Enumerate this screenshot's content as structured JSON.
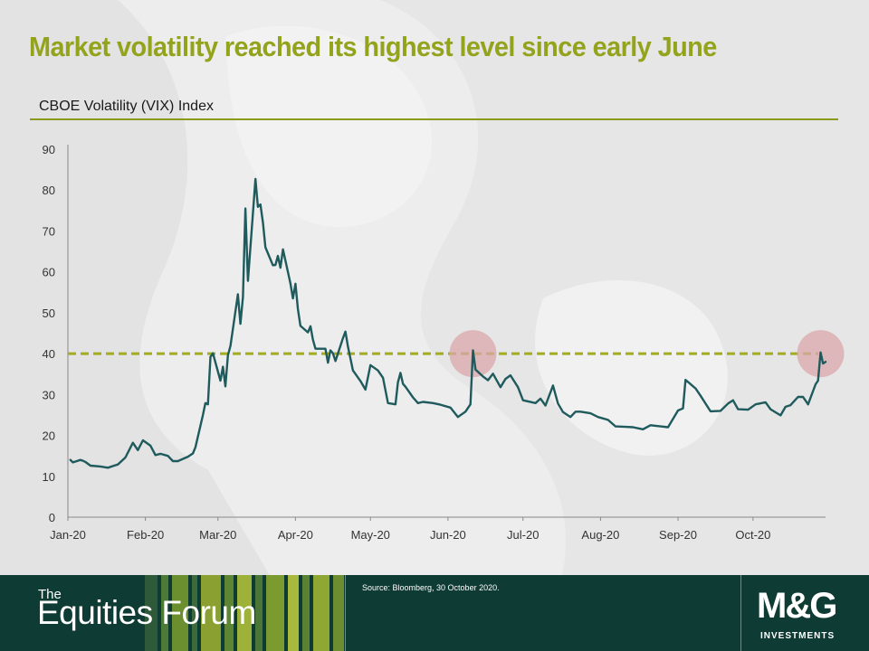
{
  "title": "Market volatility reached its highest level since early June",
  "subtitle": "CBOE Volatility (VIX) Index",
  "footer": {
    "the": "The",
    "brand": "Equities Forum",
    "source": "Source: Bloomberg, 30 October 2020.",
    "logo": "M&G",
    "logo_sub": "INVESTMENTS"
  },
  "colors": {
    "title": "#94a31c",
    "line": "#1f5a5c",
    "reference_line": "#a3ac1c",
    "highlight": "#d9a7a9",
    "footer_bg": "#0e3b34"
  },
  "chart_data": {
    "type": "line",
    "title": "CBOE Volatility (VIX) Index",
    "xlabel": "",
    "ylabel": "",
    "ylim": [
      0,
      90
    ],
    "yticks": [
      "0",
      "10",
      "20",
      "30",
      "40",
      "50",
      "60",
      "70",
      "80",
      "90"
    ],
    "xticks": [
      "Jan-20",
      "Feb-20",
      "Mar-20",
      "Apr-20",
      "May-20",
      "Jun-20",
      "Jul-20",
      "Aug-20",
      "Sep-20",
      "Oct-20"
    ],
    "xlim": [
      "2020-01-01",
      "2020-10-30"
    ],
    "grid": false,
    "reference_line": {
      "y": 40,
      "style": "dashed"
    },
    "highlights": [
      {
        "x": "2020-06-11",
        "y": 40
      },
      {
        "x": "2020-10-28",
        "y": 40
      }
    ],
    "series": [
      {
        "x": [
          "2020-01-02",
          "2020-01-03",
          "2020-01-06",
          "2020-01-07",
          "2020-01-08",
          "2020-01-10",
          "2020-01-14",
          "2020-01-17",
          "2020-01-21",
          "2020-01-24",
          "2020-01-27",
          "2020-01-29",
          "2020-01-31",
          "2020-02-03",
          "2020-02-05",
          "2020-02-07",
          "2020-02-10",
          "2020-02-12",
          "2020-02-14",
          "2020-02-18",
          "2020-02-20",
          "2020-02-21",
          "2020-02-24",
          "2020-02-25",
          "2020-02-26",
          "2020-02-27",
          "2020-02-28",
          "2020-03-02",
          "2020-03-03",
          "2020-03-04",
          "2020-03-05",
          "2020-03-06",
          "2020-03-09",
          "2020-03-10",
          "2020-03-11",
          "2020-03-12",
          "2020-03-13",
          "2020-03-16",
          "2020-03-17",
          "2020-03-18",
          "2020-03-19",
          "2020-03-20",
          "2020-03-23",
          "2020-03-24",
          "2020-03-25",
          "2020-03-26",
          "2020-03-27",
          "2020-03-30",
          "2020-03-31",
          "2020-04-01",
          "2020-04-02",
          "2020-04-03",
          "2020-04-06",
          "2020-04-07",
          "2020-04-08",
          "2020-04-09",
          "2020-04-13",
          "2020-04-14",
          "2020-04-15",
          "2020-04-16",
          "2020-04-17",
          "2020-04-20",
          "2020-04-21",
          "2020-04-22",
          "2020-04-24",
          "2020-04-27",
          "2020-04-29",
          "2020-04-30",
          "2020-05-01",
          "2020-05-04",
          "2020-05-06",
          "2020-05-08",
          "2020-05-11",
          "2020-05-12",
          "2020-05-13",
          "2020-05-14",
          "2020-05-15",
          "2020-05-18",
          "2020-05-20",
          "2020-05-22",
          "2020-05-26",
          "2020-05-29",
          "2020-06-02",
          "2020-06-05",
          "2020-06-08",
          "2020-06-10",
          "2020-06-11",
          "2020-06-12",
          "2020-06-15",
          "2020-06-17",
          "2020-06-19",
          "2020-06-22",
          "2020-06-24",
          "2020-06-26",
          "2020-06-29",
          "2020-07-01",
          "2020-07-06",
          "2020-07-08",
          "2020-07-10",
          "2020-07-13",
          "2020-07-15",
          "2020-07-17",
          "2020-07-20",
          "2020-07-22",
          "2020-07-24",
          "2020-07-28",
          "2020-07-31",
          "2020-08-04",
          "2020-08-07",
          "2020-08-11",
          "2020-08-14",
          "2020-08-18",
          "2020-08-21",
          "2020-08-25",
          "2020-08-28",
          "2020-09-01",
          "2020-09-03",
          "2020-09-04",
          "2020-09-08",
          "2020-09-10",
          "2020-09-14",
          "2020-09-18",
          "2020-09-21",
          "2020-09-23",
          "2020-09-25",
          "2020-09-29",
          "2020-10-02",
          "2020-10-06",
          "2020-10-08",
          "2020-10-12",
          "2020-10-14",
          "2020-10-16",
          "2020-10-19",
          "2020-10-21",
          "2020-10-23",
          "2020-10-26",
          "2020-10-27",
          "2020-10-28",
          "2020-10-29",
          "2020-10-30"
        ],
        "values": [
          14.0,
          13.4,
          14.0,
          13.8,
          13.5,
          12.6,
          12.4,
          12.1,
          12.9,
          14.6,
          18.2,
          16.4,
          18.8,
          17.5,
          15.2,
          15.5,
          15.0,
          13.7,
          13.7,
          14.8,
          15.6,
          17.1,
          25.0,
          27.9,
          27.6,
          39.2,
          40.1,
          33.4,
          36.8,
          32.0,
          39.6,
          41.9,
          54.5,
          47.3,
          53.9,
          75.5,
          57.8,
          82.7,
          75.9,
          76.5,
          72.0,
          66.0,
          61.6,
          61.7,
          63.9,
          61.0,
          65.5,
          57.1,
          53.5,
          57.1,
          50.9,
          46.8,
          45.2,
          46.7,
          43.4,
          41.2,
          41.2,
          37.8,
          40.8,
          40.1,
          38.2,
          43.8,
          45.4,
          41.7,
          35.9,
          33.3,
          31.2,
          34.2,
          37.2,
          35.9,
          34.1,
          27.9,
          27.6,
          33.0,
          35.3,
          32.6,
          31.9,
          29.3,
          27.9,
          28.2,
          27.9,
          27.5,
          26.8,
          24.5,
          25.8,
          27.6,
          40.8,
          36.1,
          34.4,
          33.5,
          35.1,
          31.8,
          33.8,
          34.7,
          31.8,
          28.6,
          27.9,
          29.0,
          27.3,
          32.2,
          27.8,
          25.7,
          24.5,
          25.8,
          25.8,
          25.4,
          24.5,
          23.8,
          22.2,
          22.1,
          22.0,
          21.5,
          22.5,
          22.2,
          22.0,
          26.1,
          26.6,
          33.6,
          31.5,
          29.7,
          25.9,
          26.0,
          27.8,
          28.6,
          26.4,
          26.3,
          27.6,
          28.1,
          26.4,
          24.9,
          27.0,
          27.4,
          29.4,
          29.4,
          27.6,
          32.5,
          33.4,
          40.3,
          37.6,
          38.0
        ]
      }
    ]
  }
}
